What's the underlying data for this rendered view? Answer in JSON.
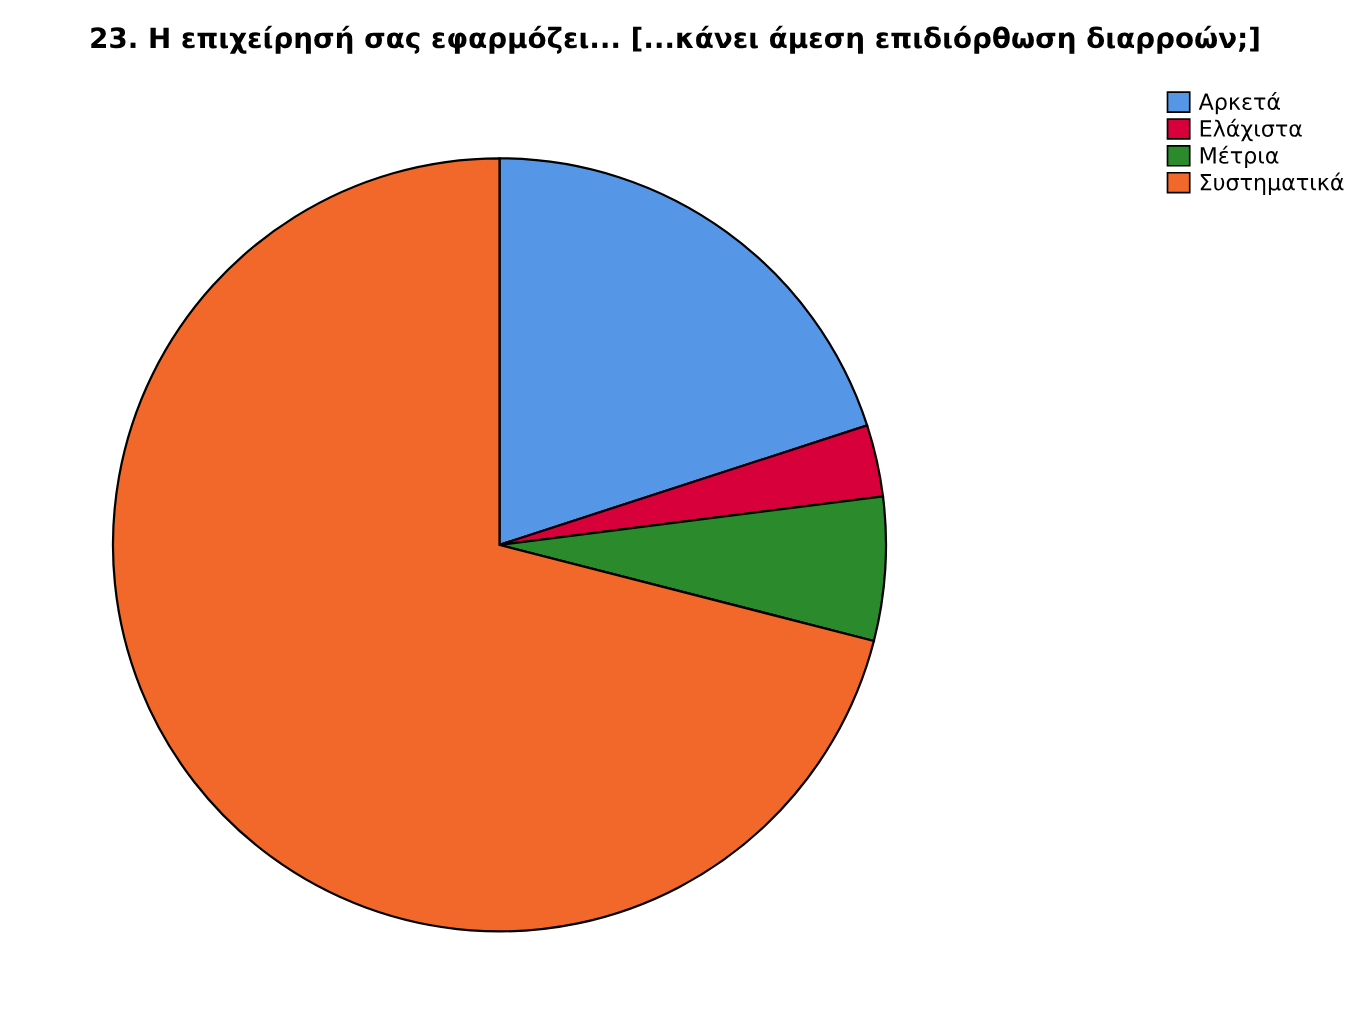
{
  "chart_data": {
    "type": "pie",
    "title": "23. Η επιχείρησή σας εφαρμόζει... [...κάνει άμεση επιδιόρθωση διαρροών;]",
    "categories": [
      "Αρκετά",
      "Ελάχιστα",
      "Μέτρια",
      "Συστηματικά"
    ],
    "values": [
      20,
      3,
      6,
      71
    ],
    "colors": [
      "#5596e6",
      "#d7003a",
      "#2b8a2b",
      "#f2682a"
    ],
    "legend": "top right"
  }
}
